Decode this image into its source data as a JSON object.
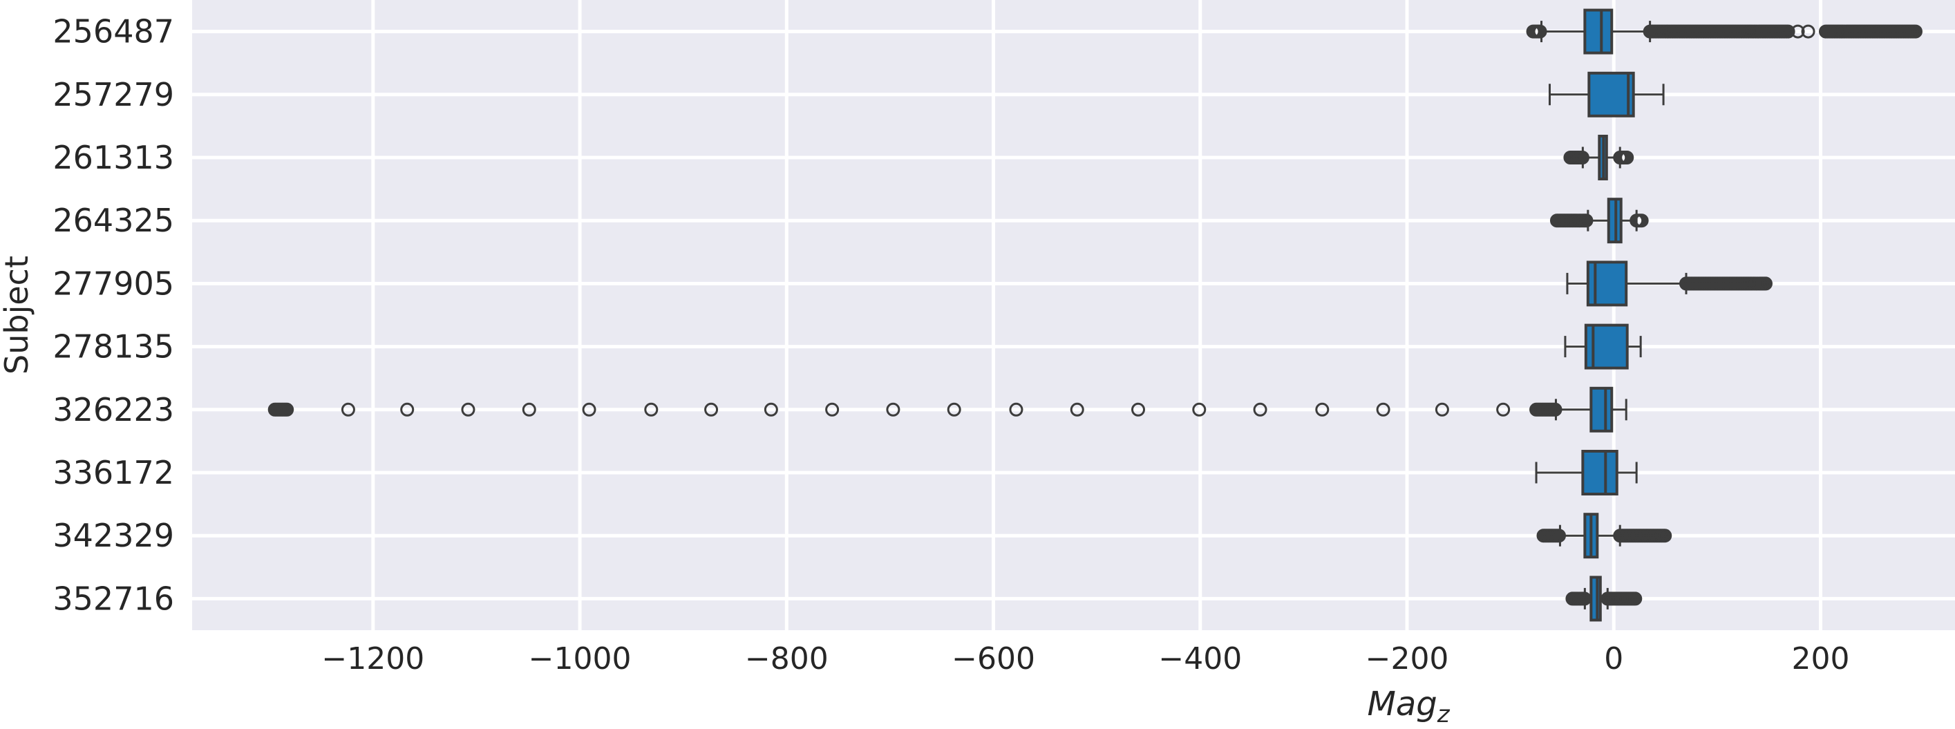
{
  "chart_data": {
    "type": "boxplot",
    "orientation": "horizontal",
    "xlabel": "Mag_z",
    "xlabel_parts": {
      "base": "Mag",
      "sub": "z"
    },
    "ylabel": "Subject",
    "xlim": [
      -1375,
      330
    ],
    "xticks": [
      -1200,
      -1000,
      -800,
      -600,
      -400,
      -200,
      0,
      200
    ],
    "xtick_labels": [
      "−1200",
      "−1000",
      "−800",
      "−600",
      "−400",
      "−200",
      "0",
      "200"
    ],
    "grid": true,
    "colors": {
      "background": "#eaeaf2",
      "grid": "#ffffff",
      "box_fill": "#1f77b4",
      "line": "#3d3d3d"
    },
    "categories": [
      "256487",
      "257279",
      "261313",
      "264325",
      "277905",
      "278135",
      "326223",
      "336172",
      "342329",
      "352716"
    ],
    "boxes": [
      {
        "subject": "256487",
        "whisker_low": -70,
        "q1": -28,
        "median": -12,
        "q3": -2,
        "whisker_high": 35,
        "outlier_bands": [
          [
            -78,
            -70
          ],
          [
            35,
            170
          ],
          [
            205,
            292
          ]
        ],
        "outliers": [
          178,
          188
        ]
      },
      {
        "subject": "257279",
        "whisker_low": -62,
        "q1": -24,
        "median": 14,
        "q3": 19,
        "whisker_high": 48,
        "outlier_bands": [],
        "outliers": []
      },
      {
        "subject": "261313",
        "whisker_low": -30,
        "q1": -14,
        "median": -10,
        "q3": -7,
        "whisker_high": 6,
        "outlier_bands": [
          [
            -42,
            -30
          ],
          [
            6,
            14
          ]
        ],
        "outliers": []
      },
      {
        "subject": "264325",
        "whisker_low": -25,
        "q1": -5,
        "median": 2,
        "q3": 7,
        "whisker_high": 22,
        "outlier_bands": [
          [
            -55,
            -25
          ],
          [
            22,
            28
          ]
        ],
        "outliers": []
      },
      {
        "subject": "277905",
        "whisker_low": -45,
        "q1": -25,
        "median": -18,
        "q3": 12,
        "whisker_high": 70,
        "outlier_bands": [
          [
            70,
            147
          ]
        ],
        "outliers": []
      },
      {
        "subject": "278135",
        "whisker_low": -47,
        "q1": -27,
        "median": -20,
        "q3": 13,
        "whisker_high": 26,
        "outlier_bands": [],
        "outliers": []
      },
      {
        "subject": "326223",
        "whisker_low": -56,
        "q1": -22,
        "median": -8,
        "q3": -2,
        "whisker_high": 12,
        "outlier_bands": [
          [
            -1295,
            -1282
          ],
          [
            -75,
            -56
          ]
        ],
        "outliers": [
          -1224,
          -1167,
          -1108,
          -1049,
          -991,
          -931,
          -873,
          -815,
          -756,
          -697,
          -638,
          -578,
          -519,
          -460,
          -401,
          -342,
          -282,
          -223,
          -166,
          -107
        ]
      },
      {
        "subject": "336172",
        "whisker_low": -75,
        "q1": -30,
        "median": -8,
        "q3": 3,
        "whisker_high": 22,
        "outlier_bands": [],
        "outliers": []
      },
      {
        "subject": "342329",
        "whisker_low": -52,
        "q1": -28,
        "median": -22,
        "q3": -16,
        "whisker_high": 6,
        "outlier_bands": [
          [
            -68,
            -52
          ],
          [
            6,
            50
          ]
        ],
        "outliers": []
      },
      {
        "subject": "352716",
        "whisker_low": -28,
        "q1": -22,
        "median": -16,
        "q3": -13,
        "whisker_high": -6,
        "outlier_bands": [
          [
            -40,
            -28
          ],
          [
            -6,
            22
          ]
        ],
        "outliers": []
      }
    ]
  }
}
